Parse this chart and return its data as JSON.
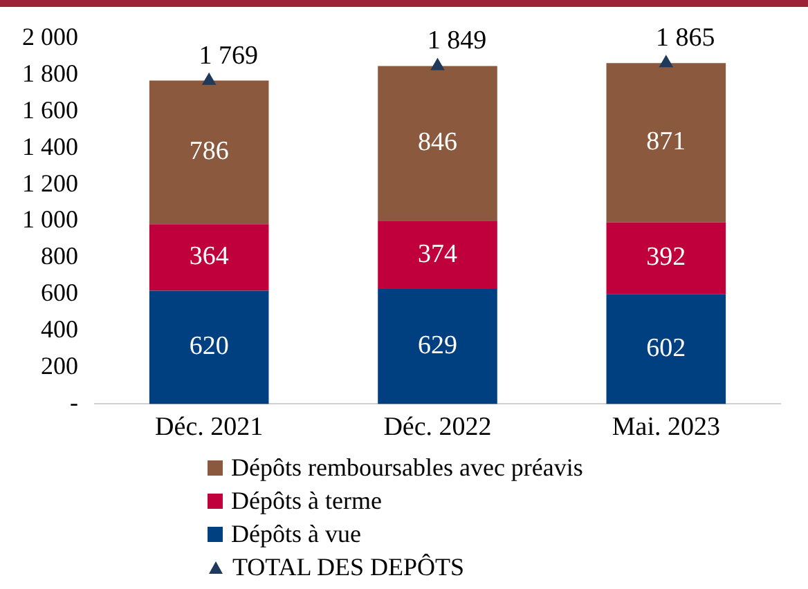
{
  "chart_data": {
    "type": "bar",
    "stacked": true,
    "categories": [
      "Déc. 2021",
      "Déc. 2022",
      "Mai. 2023"
    ],
    "series": [
      {
        "name": "Dépôts à vue",
        "color": "#004080",
        "values": [
          620,
          629,
          602
        ]
      },
      {
        "name": "Dépôts à terme",
        "color": "#c0003c",
        "values": [
          364,
          374,
          392
        ]
      },
      {
        "name": "Dépôts remboursables avec préavis",
        "color": "#8b5a3e",
        "values": [
          786,
          846,
          871
        ]
      },
      {
        "name": "TOTAL DES DEPÔTS",
        "type": "scatter",
        "color": "#1f3a5a",
        "marker": "triangle",
        "values": [
          1769,
          1849,
          1865
        ]
      }
    ],
    "ylim": [
      0,
      2000
    ],
    "yticks": [
      {
        "value": 0,
        "label": "-"
      },
      200,
      400,
      600,
      800,
      {
        "value": 1000,
        "label": "1 000"
      },
      {
        "value": 1200,
        "label": "1 200"
      },
      {
        "value": 1400,
        "label": "1 400"
      },
      {
        "value": 1600,
        "label": "1 600"
      },
      {
        "value": 1800,
        "label": "1 800"
      },
      {
        "value": 2000,
        "label": "2 000"
      }
    ],
    "grid": false,
    "legend": "bottom",
    "data_labels": true
  }
}
